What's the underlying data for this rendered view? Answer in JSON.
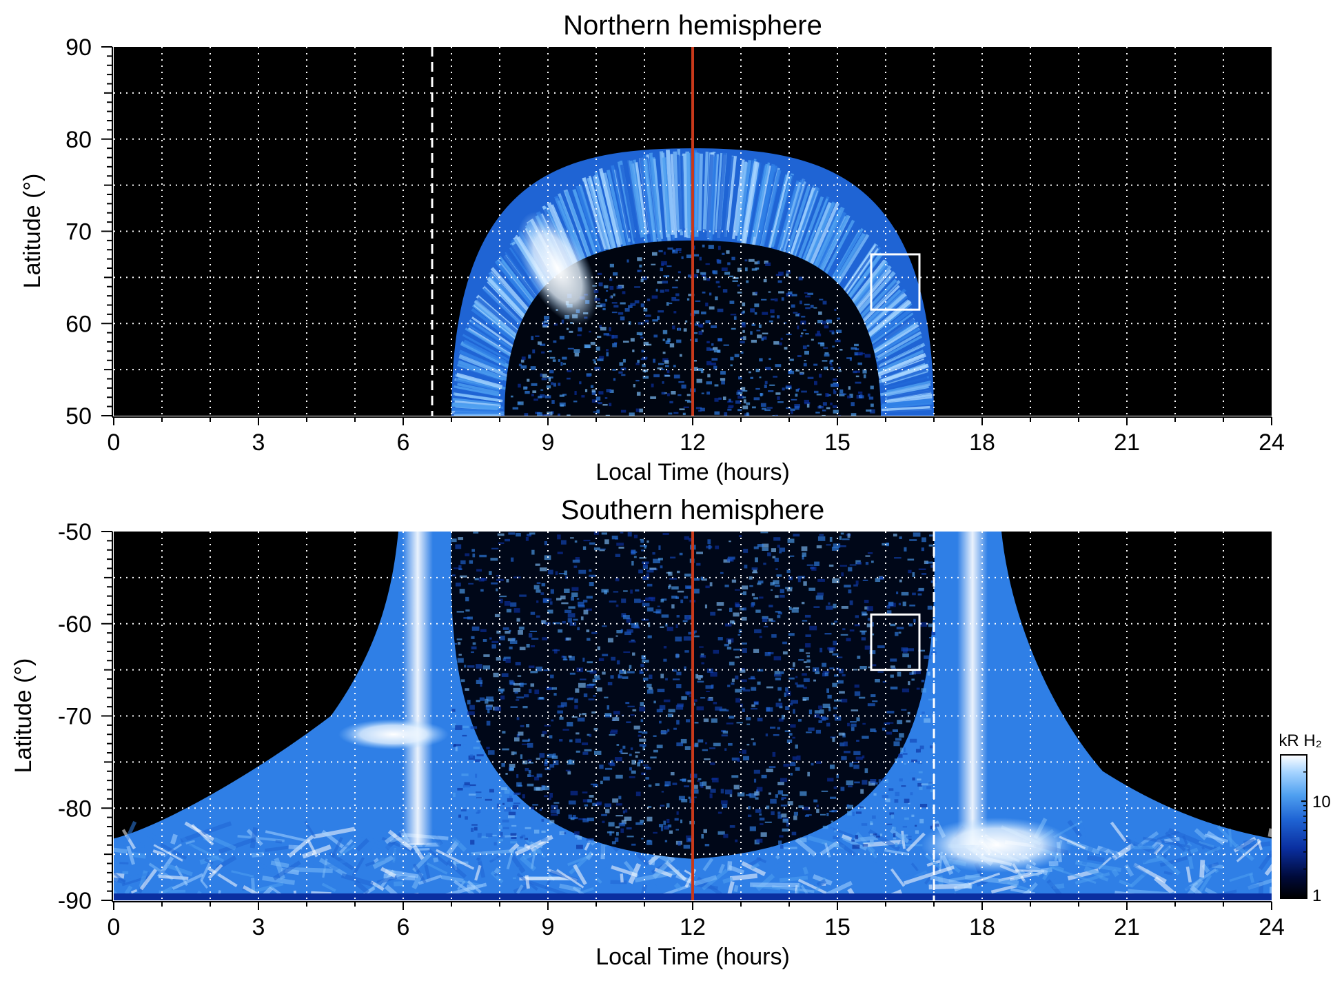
{
  "chart_data": [
    {
      "type": "heatmap",
      "title": "Northern hemisphere",
      "xlabel": "Local Time (hours)",
      "ylabel": "Latitude (°)",
      "xlim": [
        0,
        24
      ],
      "ylim": [
        50,
        90
      ],
      "x_ticks": [
        "0",
        "3",
        "6",
        "9",
        "12",
        "15",
        "18",
        "21",
        "24"
      ],
      "y_ticks": [
        "50",
        "60",
        "70",
        "80",
        "90"
      ],
      "grid": true,
      "background_color": "#000000",
      "noon_line": {
        "x": 12,
        "color": "#c8391a"
      },
      "dashed_line": {
        "x": 6.6,
        "color": "#ffffff"
      },
      "box": {
        "x": [
          15.7,
          16.7
        ],
        "y": [
          61.5,
          67.5
        ]
      },
      "auroral_oval": {
        "x_range": [
          7.0,
          17.0
        ],
        "outer_latitude_peak": 79,
        "inner_latitude_peak": 69
      },
      "bright_spot": {
        "x": 9.2,
        "y": 66
      }
    },
    {
      "type": "heatmap",
      "title": "Southern hemisphere",
      "xlabel": "Local Time (hours)",
      "ylabel": "Latitude (°)",
      "xlim": [
        0,
        24
      ],
      "ylim": [
        -90,
        -50
      ],
      "x_ticks": [
        "0",
        "3",
        "6",
        "9",
        "12",
        "15",
        "18",
        "21",
        "24"
      ],
      "y_ticks": [
        "-50",
        "-60",
        "-70",
        "-80",
        "-90"
      ],
      "grid": true,
      "background_color": "#000000",
      "noon_line": {
        "x": 12,
        "color": "#c8391a"
      },
      "dashed_line": {
        "x": 17.0,
        "color": "#ffffff"
      },
      "box": {
        "x": [
          15.7,
          16.7
        ],
        "y": [
          -65,
          -59
        ]
      },
      "bright_stripes": [
        6.3,
        17.8
      ],
      "bright_spot": {
        "x": 5.8,
        "y": -72
      }
    }
  ],
  "colorbar": {
    "label": "kR H₂",
    "ticks": [
      "1",
      "10"
    ],
    "scale": "log",
    "range": [
      1,
      30
    ],
    "colors": [
      "#000000",
      "#000a3a",
      "#0a2fa0",
      "#1f64d4",
      "#4fa0f0",
      "#a6d4ff",
      "#ffffff"
    ]
  }
}
